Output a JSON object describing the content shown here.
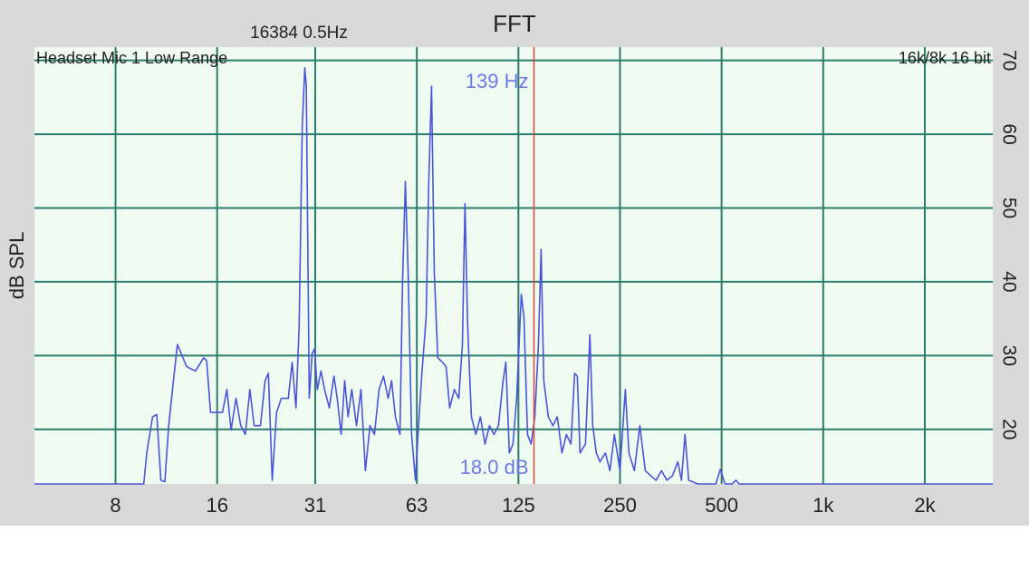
{
  "chart_data": {
    "type": "line",
    "title": "FFT",
    "subtitle": "16384  0.5Hz",
    "source_label": "Headset Mic 1 Low Range",
    "format_label": "16k/8k 16 bit",
    "ylabel": "dB SPL",
    "xscale": "log",
    "grid": true,
    "color": "#4b55d8",
    "xlim": [
      4.6,
      3180
    ],
    "ylim": [
      12.6,
      71.8
    ],
    "xticks": [
      8,
      16,
      {
        "value": 31.25,
        "label": "31"
      },
      {
        "value": 62.5,
        "label": "63"
      },
      125,
      250,
      500,
      {
        "value": 1000,
        "label": "1k"
      },
      {
        "value": 2000,
        "label": "2k"
      }
    ],
    "yticks": [
      20,
      30,
      40,
      50,
      60,
      70
    ],
    "cursor": {
      "x": 139,
      "label": "139 Hz",
      "level_label": "18.0 dB",
      "color": "#e0453a"
    },
    "x": [
      4.6,
      9.7,
      9.9,
      10.3,
      10.6,
      10.9,
      11.2,
      11.5,
      11.8,
      12.2,
      13.0,
      13.8,
      14.6,
      14.9,
      15.3,
      16.6,
      17.1,
      17.6,
      18.2,
      18.8,
      19.4,
      20.0,
      20.6,
      21.5,
      22.2,
      22.7,
      23.3,
      24.0,
      24.8,
      26.0,
      26.7,
      27.4,
      28.0,
      28.6,
      29.1,
      29.4,
      30.0,
      30.6,
      31.1,
      31.7,
      32.5,
      33.3,
      34.4,
      35.5,
      36.3,
      37.3,
      38.2,
      39.1,
      40.1,
      41.4,
      42.7,
      44.0,
      45.4,
      46.8,
      48.3,
      49.8,
      51.4,
      52.6,
      54.0,
      55.7,
      56.7,
      57.8,
      58.9,
      60.3,
      61.9,
      63.0,
      64.6,
      66.6,
      67.8,
      69.1,
      70.4,
      72.1,
      74.4,
      76.3,
      78.2,
      80.7,
      83.2,
      85.3,
      86.8,
      88.4,
      90.7,
      93.5,
      96.4,
      99.5,
      102.6,
      105.8,
      109.1,
      112.6,
      114.7,
      117.5,
      120.4,
      123.5,
      127.5,
      129.8,
      133.0,
      136.3,
      139.8,
      143.3,
      145.9,
      148.6,
      153.3,
      158.1,
      163.0,
      168.2,
      173.4,
      178.9,
      183.4,
      186.8,
      190.3,
      197.5,
      203.6,
      207.5,
      212.7,
      218.0,
      226.3,
      233.3,
      240.6,
      249.9,
      259.2,
      265.7,
      275.7,
      286.2,
      297.0,
      308.2,
      319.7,
      331.8,
      344.3,
      357.4,
      370.9,
      380.2,
      389.6,
      399.4,
      425.0,
      480.8,
      495.9,
      511.7,
      537,
      551,
      564,
      3180
    ],
    "values": [
      12.6,
      12.6,
      16.8,
      21.7,
      22.0,
      13.1,
      12.9,
      20.5,
      25.4,
      31.5,
      28.5,
      27.9,
      29.7,
      29.3,
      22.3,
      22.3,
      25.4,
      19.9,
      24.2,
      20.5,
      19.3,
      25.4,
      20.5,
      20.5,
      26.6,
      27.6,
      13.1,
      22.3,
      24.2,
      24.2,
      29.1,
      22.9,
      34.0,
      61.0,
      69.0,
      66.5,
      24.2,
      30.3,
      30.9,
      25.4,
      27.9,
      25.4,
      22.9,
      27.2,
      24.2,
      19.3,
      26.6,
      21.7,
      25.4,
      20.5,
      25.4,
      14.4,
      20.5,
      19.3,
      25.4,
      27.2,
      24.2,
      26.6,
      21.7,
      19.3,
      40.1,
      53.6,
      41.3,
      19.3,
      13.1,
      19.3,
      27.2,
      35.2,
      53.6,
      66.5,
      41.3,
      29.7,
      29.1,
      28.5,
      22.9,
      25.4,
      24.2,
      31.5,
      50.6,
      34.0,
      21.7,
      19.3,
      21.7,
      18.0,
      20.5,
      19.3,
      20.5,
      26.6,
      29.1,
      16.8,
      18.0,
      24.2,
      38.3,
      35.2,
      19.3,
      18.0,
      21.7,
      31.5,
      44.4,
      26.6,
      21.7,
      20.5,
      21.7,
      16.8,
      19.3,
      18.0,
      27.6,
      27.2,
      16.8,
      18.0,
      32.8,
      20.5,
      16.8,
      15.6,
      16.8,
      14.4,
      19.3,
      14.4,
      25.4,
      16.8,
      14.4,
      20.5,
      14.4,
      13.7,
      13.1,
      14.4,
      13.1,
      13.7,
      15.6,
      13.1,
      19.3,
      13.1,
      12.6,
      12.6,
      14.6,
      12.6,
      12.6,
      13.1,
      12.6,
      12.6
    ]
  }
}
